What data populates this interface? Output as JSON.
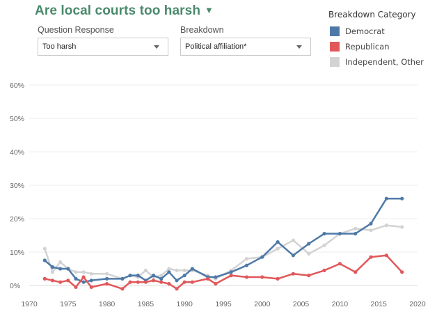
{
  "title": "Are local courts too harsh",
  "filters": {
    "question_label": "Question Response",
    "question_value": "Too harsh",
    "breakdown_label": "Breakdown",
    "breakdown_value": "Political affiliation*"
  },
  "legend": {
    "title": "Breakdown Category",
    "items": [
      {
        "label": "Democrat",
        "color": "#4e79a7"
      },
      {
        "label": "Republican",
        "color": "#e15759"
      },
      {
        "label": "Independent, Other",
        "color": "#d3d3d3"
      }
    ]
  },
  "chart_data": {
    "type": "line",
    "title": "",
    "xlabel": "",
    "ylabel": "",
    "xlim": [
      1970,
      2020
    ],
    "ylim": [
      0,
      60
    ],
    "x_ticks": [
      1970,
      1975,
      1980,
      1985,
      1990,
      1995,
      2000,
      2005,
      2010,
      2015,
      2020
    ],
    "y_ticks": [
      0,
      10,
      20,
      30,
      40,
      50,
      60
    ],
    "y_tick_labels": [
      "0%",
      "10%",
      "20%",
      "30%",
      "40%",
      "50%",
      "60%"
    ],
    "grid": "horizontal",
    "series": [
      {
        "name": "Independent, Other",
        "color": "#d3d3d3",
        "x": [
          1972,
          1973,
          1974,
          1975,
          1976,
          1977,
          1978,
          1980,
          1982,
          1983,
          1984,
          1985,
          1986,
          1987,
          1988,
          1989,
          1990,
          1991,
          1993,
          1994,
          1996,
          1998,
          2000,
          2002,
          2004,
          2006,
          2008,
          2010,
          2012,
          2014,
          2016,
          2018
        ],
        "y": [
          11,
          4,
          7,
          5,
          4,
          4,
          3.5,
          3.5,
          2,
          3,
          2.5,
          4.5,
          2.5,
          3,
          5,
          4.5,
          4.5,
          4.5,
          3,
          2,
          4.5,
          8,
          8.5,
          11,
          13.5,
          9.5,
          12,
          15.5,
          17,
          16.5,
          18,
          17.5
        ]
      },
      {
        "name": "Democrat",
        "color": "#4e79a7",
        "x": [
          1972,
          1973,
          1974,
          1975,
          1976,
          1977,
          1978,
          1980,
          1982,
          1983,
          1984,
          1985,
          1986,
          1987,
          1988,
          1989,
          1990,
          1991,
          1993,
          1994,
          1996,
          1998,
          2000,
          2002,
          2004,
          2006,
          2008,
          2010,
          2012,
          2014,
          2016,
          2018
        ],
        "y": [
          7.5,
          5.5,
          5,
          5,
          2,
          1,
          1.5,
          2,
          2,
          3,
          3,
          1.5,
          3,
          2,
          4,
          1.5,
          3,
          5,
          2.5,
          2.5,
          4,
          6,
          8.5,
          13,
          9,
          12.5,
          15.5,
          15.5,
          15.5,
          18.5,
          26,
          26
        ]
      },
      {
        "name": "Republican",
        "color": "#e15759",
        "x": [
          1972,
          1973,
          1974,
          1975,
          1976,
          1977,
          1978,
          1980,
          1982,
          1983,
          1984,
          1985,
          1986,
          1987,
          1988,
          1989,
          1990,
          1991,
          1993,
          1994,
          1996,
          1998,
          2000,
          2002,
          2004,
          2006,
          2008,
          2010,
          2012,
          2014,
          2016,
          2018
        ],
        "y": [
          2,
          1.5,
          1,
          1.5,
          -0.5,
          2.5,
          -0.5,
          0.5,
          -1,
          1,
          1,
          1,
          1.5,
          1,
          0.5,
          -1,
          1,
          1,
          2,
          0.5,
          3,
          2.5,
          2.5,
          2,
          3.5,
          3,
          4.5,
          6.5,
          4,
          8.5,
          9,
          4
        ]
      }
    ]
  }
}
